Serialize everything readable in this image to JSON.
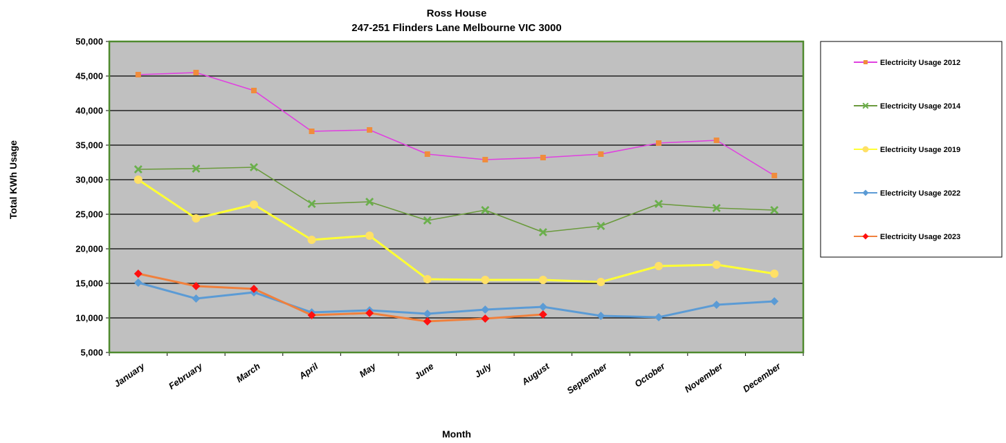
{
  "chart_data": {
    "type": "line",
    "title": "Ross House",
    "subtitle": "247-251 Flinders Lane Melbourne VIC 3000",
    "xlabel": "Month",
    "ylabel": "Total KWh Usage",
    "ylim": [
      5000,
      50000
    ],
    "yticks": [
      5000,
      10000,
      15000,
      20000,
      25000,
      30000,
      35000,
      40000,
      45000,
      50000
    ],
    "ytick_labels": [
      "5,000",
      "10,000",
      "15,000",
      "20,000",
      "25,000",
      "30,000",
      "35,000",
      "40,000",
      "45,000",
      "50,000"
    ],
    "grid": true,
    "legend_position": "right",
    "plot_background": "#c0c0c0",
    "plot_border_color": "#4f8a2e",
    "categories": [
      "January",
      "February",
      "March",
      "April",
      "May",
      "June",
      "July",
      "August",
      "September",
      "October",
      "November",
      "December"
    ],
    "series": [
      {
        "name": "Electricity Usage 2012",
        "line_color": "#e040e0",
        "marker_color": "#f08c3c",
        "marker": "square",
        "values": [
          45200,
          45500,
          42900,
          37000,
          37200,
          33700,
          32900,
          33200,
          33700,
          35300,
          35700,
          30600
        ]
      },
      {
        "name": "Electricity Usage 2014",
        "line_color": "#6a9a3c",
        "marker_color": "#6ab04c",
        "marker": "x",
        "values": [
          31500,
          31600,
          31800,
          26500,
          26800,
          24100,
          25600,
          22400,
          23300,
          26500,
          25900,
          25600
        ]
      },
      {
        "name": "Electricity Usage 2019",
        "line_color": "#ffff33",
        "marker_color": "#ffe066",
        "marker": "circle",
        "values": [
          30000,
          24400,
          26400,
          21300,
          21900,
          15600,
          15500,
          15500,
          15200,
          17500,
          17700,
          16400
        ]
      },
      {
        "name": "Electricity Usage 2022",
        "line_color": "#5b9bd5",
        "marker_color": "#5b9bd5",
        "marker": "diamond",
        "values": [
          15100,
          12800,
          13700,
          10800,
          11100,
          10600,
          11200,
          11600,
          10300,
          10100,
          11900,
          12400
        ]
      },
      {
        "name": "Electricity Usage 2023",
        "line_color": "#f0803c",
        "marker_color": "#ff1010",
        "marker": "diamond",
        "values": [
          16400,
          14600,
          14200,
          10400,
          10700,
          9500,
          9900,
          10500,
          null,
          null,
          null,
          null
        ]
      }
    ]
  }
}
